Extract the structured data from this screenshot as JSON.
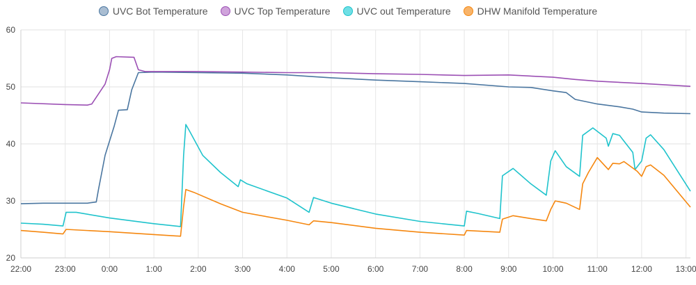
{
  "chart_data": {
    "type": "line",
    "ylim": [
      20,
      60
    ],
    "yticks": [
      20,
      30,
      40,
      50,
      60
    ],
    "xlim": [
      -2,
      13.1
    ],
    "xticks": [
      {
        "label": "22:00",
        "h": -2
      },
      {
        "label": "23:00",
        "h": -1
      },
      {
        "label": "0:00",
        "h": 0
      },
      {
        "label": "1:00",
        "h": 1
      },
      {
        "label": "2:00",
        "h": 2
      },
      {
        "label": "3:00",
        "h": 3
      },
      {
        "label": "4:00",
        "h": 4
      },
      {
        "label": "5:00",
        "h": 5
      },
      {
        "label": "6:00",
        "h": 6
      },
      {
        "label": "7:00",
        "h": 7
      },
      {
        "label": "8:00",
        "h": 8
      },
      {
        "label": "9:00",
        "h": 9
      },
      {
        "label": "10:00",
        "h": 10
      },
      {
        "label": "11:00",
        "h": 11
      },
      {
        "label": "12:00",
        "h": 12
      },
      {
        "label": "13:00",
        "h": 13
      }
    ],
    "grid": true,
    "legend_position": "top",
    "series": [
      {
        "name": "UVC Bot Temperature",
        "color": "#4a76a0",
        "fill": "#a9bdd2",
        "points": [
          [
            -2,
            29.5
          ],
          [
            -1.5,
            29.6
          ],
          [
            -0.5,
            29.6
          ],
          [
            -0.3,
            29.8
          ],
          [
            -0.25,
            32
          ],
          [
            -0.1,
            38
          ],
          [
            0.1,
            43
          ],
          [
            0.2,
            45.9
          ],
          [
            0.4,
            46
          ],
          [
            0.5,
            49.5
          ],
          [
            0.65,
            52.5
          ],
          [
            1,
            52.6
          ],
          [
            2,
            52.5
          ],
          [
            3,
            52.4
          ],
          [
            4,
            52.1
          ],
          [
            5,
            51.6
          ],
          [
            6,
            51.2
          ],
          [
            7,
            50.9
          ],
          [
            8,
            50.6
          ],
          [
            9,
            50.0
          ],
          [
            9.5,
            49.9
          ],
          [
            10,
            49.3
          ],
          [
            10.3,
            49
          ],
          [
            10.5,
            47.8
          ],
          [
            11,
            47
          ],
          [
            11.5,
            46.5
          ],
          [
            11.8,
            46.1
          ],
          [
            12,
            45.6
          ],
          [
            12.5,
            45.4
          ],
          [
            13.1,
            45.3
          ]
        ]
      },
      {
        "name": "UVC Top Temperature",
        "color": "#9b4fb4",
        "fill": "#cfa3db",
        "points": [
          [
            -2,
            47.2
          ],
          [
            -1,
            46.9
          ],
          [
            -0.5,
            46.8
          ],
          [
            -0.4,
            47
          ],
          [
            -0.1,
            50.5
          ],
          [
            0,
            53
          ],
          [
            0.05,
            55
          ],
          [
            0.15,
            55.3
          ],
          [
            0.55,
            55.2
          ],
          [
            0.65,
            53
          ],
          [
            0.8,
            52.7
          ],
          [
            2,
            52.7
          ],
          [
            3,
            52.6
          ],
          [
            4,
            52.5
          ],
          [
            5,
            52.5
          ],
          [
            6,
            52.3
          ],
          [
            7,
            52.2
          ],
          [
            8,
            52
          ],
          [
            9,
            52.1
          ],
          [
            10,
            51.7
          ],
          [
            10.5,
            51.3
          ],
          [
            11,
            51
          ],
          [
            12,
            50.6
          ],
          [
            13.1,
            50.1
          ]
        ]
      },
      {
        "name": "UVC out Temperature",
        "color": "#1fc3cc",
        "fill": "#6fdfe5",
        "points": [
          [
            -2,
            26.1
          ],
          [
            -1.5,
            25.9
          ],
          [
            -1.05,
            25.6
          ],
          [
            -0.98,
            28
          ],
          [
            -0.75,
            28
          ],
          [
            0,
            27
          ],
          [
            1,
            26
          ],
          [
            1.6,
            25.5
          ],
          [
            1.67,
            38
          ],
          [
            1.72,
            43.4
          ],
          [
            1.8,
            42.3
          ],
          [
            2.1,
            38
          ],
          [
            2.5,
            35
          ],
          [
            2.9,
            32.5
          ],
          [
            2.95,
            33.7
          ],
          [
            3.1,
            33
          ],
          [
            4,
            30.5
          ],
          [
            4.5,
            28
          ],
          [
            4.6,
            30.6
          ],
          [
            5,
            29.6
          ],
          [
            6,
            27.7
          ],
          [
            7,
            26.4
          ],
          [
            8,
            25.6
          ],
          [
            8.05,
            28.2
          ],
          [
            8.3,
            27.8
          ],
          [
            8.8,
            26.9
          ],
          [
            8.86,
            34.4
          ],
          [
            9.1,
            35.7
          ],
          [
            9.5,
            33
          ],
          [
            9.85,
            31
          ],
          [
            9.95,
            37
          ],
          [
            10.05,
            38.8
          ],
          [
            10.3,
            36
          ],
          [
            10.6,
            34.3
          ],
          [
            10.67,
            41.5
          ],
          [
            10.9,
            42.8
          ],
          [
            11.2,
            41
          ],
          [
            11.25,
            39.6
          ],
          [
            11.35,
            41.8
          ],
          [
            11.5,
            41.5
          ],
          [
            11.6,
            40.5
          ],
          [
            11.8,
            38.5
          ],
          [
            11.85,
            35.5
          ],
          [
            12.0,
            37
          ],
          [
            12.1,
            41
          ],
          [
            12.2,
            41.6
          ],
          [
            12.5,
            39
          ],
          [
            13.1,
            31.7
          ]
        ]
      },
      {
        "name": "DHW Manifold Temperature",
        "color": "#f5870f",
        "fill": "#f8b46a",
        "points": [
          [
            -2,
            24.8
          ],
          [
            -1.5,
            24.5
          ],
          [
            -1.05,
            24.2
          ],
          [
            -0.98,
            25
          ],
          [
            0,
            24.6
          ],
          [
            1,
            24.1
          ],
          [
            1.6,
            23.8
          ],
          [
            1.67,
            29
          ],
          [
            1.72,
            32
          ],
          [
            1.9,
            31.5
          ],
          [
            2.5,
            29.5
          ],
          [
            3,
            28
          ],
          [
            4,
            26.6
          ],
          [
            4.5,
            25.8
          ],
          [
            4.6,
            26.5
          ],
          [
            5,
            26.2
          ],
          [
            6,
            25.2
          ],
          [
            7,
            24.5
          ],
          [
            8,
            24
          ],
          [
            8.05,
            24.8
          ],
          [
            8.8,
            24.5
          ],
          [
            8.86,
            26.8
          ],
          [
            9.1,
            27.4
          ],
          [
            9.5,
            26.9
          ],
          [
            9.85,
            26.5
          ],
          [
            9.95,
            28.5
          ],
          [
            10.05,
            30
          ],
          [
            10.3,
            29.6
          ],
          [
            10.6,
            28.5
          ],
          [
            10.67,
            33
          ],
          [
            10.8,
            35
          ],
          [
            11.0,
            37.6
          ],
          [
            11.25,
            35.5
          ],
          [
            11.35,
            36.6
          ],
          [
            11.5,
            36.5
          ],
          [
            11.6,
            36.9
          ],
          [
            11.9,
            35.2
          ],
          [
            12.0,
            34.3
          ],
          [
            12.1,
            36
          ],
          [
            12.2,
            36.3
          ],
          [
            12.5,
            34.5
          ],
          [
            13.1,
            28.9
          ]
        ]
      }
    ]
  }
}
